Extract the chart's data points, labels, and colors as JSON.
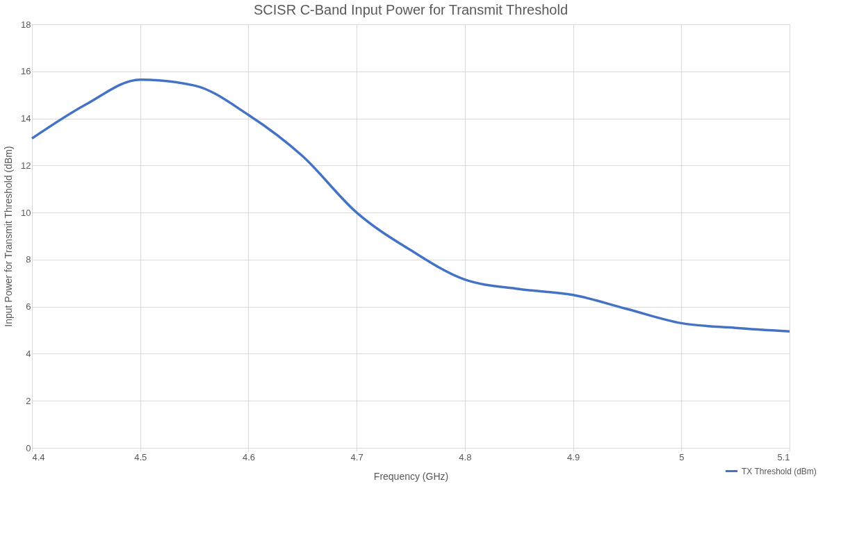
{
  "chart_data": {
    "type": "line",
    "title": "SCISR C-Band Input Power for Transmit Threshold",
    "xlabel": "Frequency (GHz)",
    "ylabel": "Input Power for Transmit Threshold (dBm)",
    "x": [
      4.4,
      4.45,
      4.5,
      4.55,
      4.6,
      4.65,
      4.7,
      4.75,
      4.8,
      4.85,
      4.9,
      4.95,
      5.0,
      5.05,
      5.1
    ],
    "series": [
      {
        "name": "TX Threshold (dBm)",
        "color": "#4472c4",
        "values": [
          13.15,
          14.6,
          15.65,
          15.4,
          14.15,
          12.4,
          10.0,
          8.4,
          7.15,
          6.75,
          6.5,
          5.9,
          5.3,
          5.1,
          4.95
        ]
      }
    ],
    "xlim": [
      4.4,
      5.1
    ],
    "xticks": [
      4.4,
      4.5,
      4.6,
      4.7,
      4.8,
      4.9,
      5,
      5.1
    ],
    "ylim": [
      0,
      18
    ],
    "yticks": [
      0,
      2,
      4,
      6,
      8,
      10,
      12,
      14,
      16,
      18
    ],
    "grid": true,
    "legend": "bottom right",
    "marker": "none",
    "line_style": "solid"
  }
}
